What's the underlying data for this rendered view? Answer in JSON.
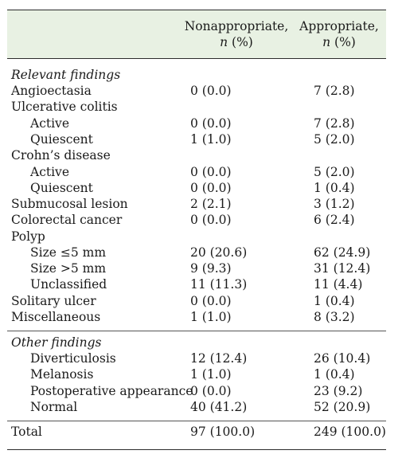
{
  "header": {
    "col1": {
      "line1": "Nonappropriate,",
      "line2_var": "n",
      "line2_rest": " (%)"
    },
    "col2": {
      "line1": "Appropriate,",
      "line2_var": "n",
      "line2_rest": " (%)"
    }
  },
  "section1": {
    "title": "Relevant findings",
    "rows": [
      {
        "label": "Angioectasia",
        "c1": "0 (0.0)",
        "c2": "7 (2.8)"
      },
      {
        "label": "Ulcerative colitis",
        "c1": "",
        "c2": ""
      },
      {
        "label": "Active",
        "c1": "0 (0.0)",
        "c2": "7 (2.8)"
      },
      {
        "label": "Quiescent",
        "c1": "1 (1.0)",
        "c2": "5 (2.0)"
      },
      {
        "label": "Crohn’s disease",
        "c1": "",
        "c2": ""
      },
      {
        "label": "Active",
        "c1": "0 (0.0)",
        "c2": "5 (2.0)"
      },
      {
        "label": "Quiescent",
        "c1": "0 (0.0)",
        "c2": "1 (0.4)"
      },
      {
        "label": "Submucosal lesion",
        "c1": "2 (2.1)",
        "c2": "3 (1.2)"
      },
      {
        "label": "Colorectal cancer",
        "c1": "0 (0.0)",
        "c2": "6 (2.4)"
      },
      {
        "label": "Polyp",
        "c1": "",
        "c2": ""
      },
      {
        "label": "Size ≤5 mm",
        "c1": "20 (20.6)",
        "c2": "62 (24.9)"
      },
      {
        "label": "Size >5 mm",
        "c1": "9 (9.3)",
        "c2": "31 (12.4)"
      },
      {
        "label": "Unclassified",
        "c1": "11 (11.3)",
        "c2": "11 (4.4)"
      },
      {
        "label": "Solitary ulcer",
        "c1": "0 (0.0)",
        "c2": "1 (0.4)"
      },
      {
        "label": "Miscellaneous",
        "c1": "1 (1.0)",
        "c2": "8 (3.2)"
      }
    ]
  },
  "section2": {
    "title": "Other findings",
    "rows": [
      {
        "label": "Diverticulosis",
        "c1": "12 (12.4)",
        "c2": "26 (10.4)"
      },
      {
        "label": "Melanosis",
        "c1": "1 (1.0)",
        "c2": "1 (0.4)"
      },
      {
        "label": "Postoperative appearance",
        "c1": "0 (0.0)",
        "c2": "23 (9.2)"
      },
      {
        "label": "Normal",
        "c1": "40 (41.2)",
        "c2": "52 (20.9)"
      }
    ]
  },
  "total": {
    "label": "Total",
    "c1": "97 (100.0)",
    "c2": "249 (100.0)"
  }
}
